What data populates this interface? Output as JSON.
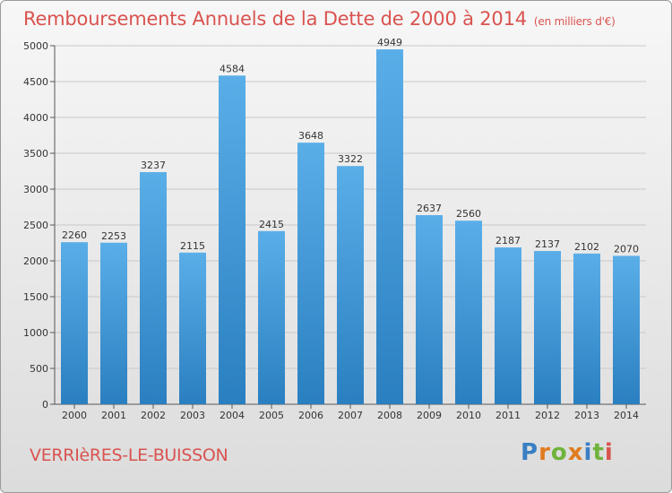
{
  "header": {
    "title": "Remboursements Annuels de la Dette de 2000 à 2014",
    "subtitle": "(en milliers d'€)"
  },
  "footer": {
    "town": "VERRIèRES-LE-BUISSON",
    "logo": "Proxiti"
  },
  "colors": {
    "title": "#d9534f",
    "bar_top": "#5aaee8",
    "bar_bottom": "#2a7fc0",
    "logo_letters": [
      "#3a7fc4",
      "#e07b1f",
      "#6fb33c",
      "#e07b1f",
      "#3a7fc4",
      "#6fb33c",
      "#d9534f"
    ]
  },
  "chart_data": {
    "type": "bar",
    "categories": [
      "2000",
      "2001",
      "2002",
      "2003",
      "2004",
      "2005",
      "2006",
      "2007",
      "2008",
      "2009",
      "2010",
      "2011",
      "2012",
      "2013",
      "2014"
    ],
    "values": [
      2260,
      2253,
      3237,
      2115,
      4584,
      2415,
      3648,
      3322,
      4949,
      2637,
      2560,
      2187,
      2137,
      2102,
      2070
    ],
    "ylim": [
      0,
      5000
    ],
    "yticks": [
      0,
      500,
      1000,
      1500,
      2000,
      2500,
      3000,
      3500,
      4000,
      4500,
      5000
    ],
    "grid": true,
    "data_labels": true
  }
}
